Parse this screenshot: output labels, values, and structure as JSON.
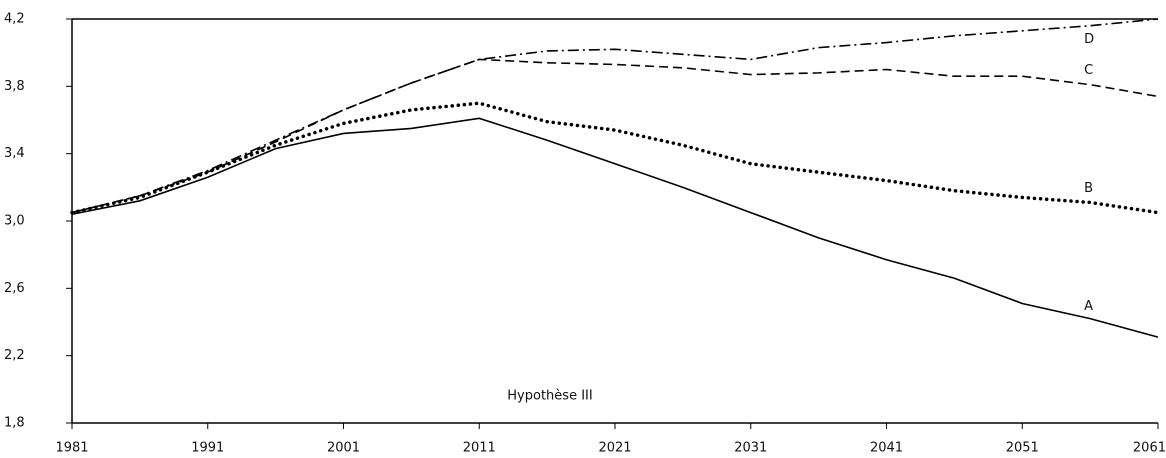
{
  "chart_data": {
    "type": "line",
    "annotation": "Hypothèse III",
    "x": [
      1981,
      1986,
      1991,
      1996,
      2001,
      2006,
      2011,
      2016,
      2021,
      2026,
      2031,
      2036,
      2041,
      2046,
      2051,
      2056,
      2061
    ],
    "series": [
      {
        "name": "A",
        "color": "#000000",
        "dash": "solid",
        "values": [
          3.04,
          3.12,
          3.26,
          3.43,
          3.52,
          3.55,
          3.61,
          3.48,
          3.34,
          3.2,
          3.05,
          2.9,
          2.77,
          2.66,
          2.51,
          2.42,
          2.31
        ]
      },
      {
        "name": "B",
        "color": "#000000",
        "dash": "dotted",
        "values": [
          3.05,
          3.14,
          3.29,
          3.45,
          3.58,
          3.66,
          3.7,
          3.59,
          3.54,
          3.45,
          3.34,
          3.29,
          3.24,
          3.18,
          3.14,
          3.11,
          3.05
        ]
      },
      {
        "name": "C",
        "color": "#000000",
        "dash": "dashed",
        "values": [
          3.05,
          3.15,
          3.29,
          3.47,
          3.66,
          3.82,
          3.96,
          3.94,
          3.93,
          3.91,
          3.87,
          3.88,
          3.9,
          3.86,
          3.86,
          3.81,
          3.74
        ]
      },
      {
        "name": "D",
        "color": "#000000",
        "dash": "dashdot",
        "values": [
          3.05,
          3.15,
          3.3,
          3.48,
          3.66,
          3.82,
          3.96,
          4.01,
          4.02,
          3.99,
          3.96,
          4.03,
          4.06,
          4.1,
          4.13,
          4.16,
          4.2
        ]
      }
    ],
    "xlim": [
      1981,
      2061
    ],
    "xticks": [
      1981,
      1991,
      2001,
      2011,
      2021,
      2031,
      2041,
      2051,
      2061
    ],
    "ylim": [
      1.8,
      4.2
    ],
    "yticks": [
      {
        "value": 1.8,
        "label": "1,8"
      },
      {
        "value": 2.2,
        "label": "2,2"
      },
      {
        "value": 2.6,
        "label": "2,6"
      },
      {
        "value": 3.0,
        "label": "3,0"
      },
      {
        "value": 3.4,
        "label": "3,4"
      },
      {
        "value": 3.8,
        "label": "3,8"
      },
      {
        "value": 4.2,
        "label": "4,2"
      }
    ],
    "grid": false
  }
}
